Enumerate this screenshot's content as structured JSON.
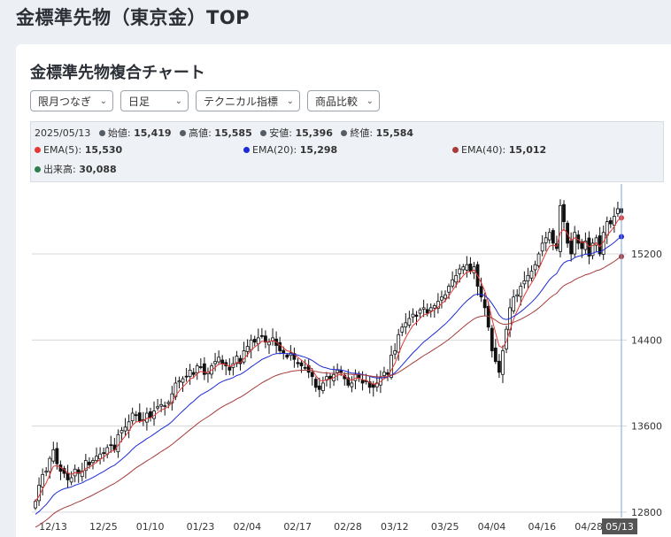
{
  "page": {
    "title": "金標準先物（東京金）TOP"
  },
  "card": {
    "title": "金標準先物複合チャート"
  },
  "toolbar": {
    "dropdowns": [
      "限月つなぎ",
      "日足",
      "テクニカル指標",
      "商品比較"
    ]
  },
  "info": {
    "date": "2025/05/13",
    "open_label": "始値:",
    "open": "15,419",
    "high_label": "高値:",
    "high": "15,585",
    "low_label": "安値:",
    "low": "15,396",
    "close_label": "終値:",
    "close": "15,584",
    "ema5_label": "EMA(5):",
    "ema5": "15,530",
    "ema20_label": "EMA(20):",
    "ema20": "15,298",
    "ema40_label": "EMA(40):",
    "ema40": "15,012",
    "volume_label": "出来高:",
    "volume": "30,088"
  },
  "colors": {
    "ema5": "#e53935",
    "ema20": "#1e2bd6",
    "ema40": "#a83b3b",
    "volume": "#2e7d4f",
    "ohlc": "#555d66",
    "crosshair": "#7aa6d6"
  },
  "chart_data": {
    "type": "candlestick",
    "x_tick_labels": [
      "12/13",
      "12/25",
      "01/10",
      "01/23",
      "02/04",
      "02/17",
      "02/28",
      "03/12",
      "03/25",
      "04/04",
      "04/16",
      "04/28",
      "05/13"
    ],
    "y_tick_labels": [
      "15200",
      "14400",
      "13600",
      "12800"
    ],
    "ylim": [
      12750,
      15850
    ],
    "grid": true,
    "crosshair_label": "05/13",
    "close": [
      12900,
      13050,
      13150,
      13180,
      13300,
      13380,
      13250,
      13180,
      13160,
      13100,
      13120,
      13200,
      13160,
      13180,
      13280,
      13240,
      13280,
      13320,
      13340,
      13350,
      13400,
      13420,
      13380,
      13520,
      13560,
      13590,
      13640,
      13720,
      13700,
      13650,
      13660,
      13720,
      13680,
      13740,
      13780,
      13800,
      13790,
      13820,
      13900,
      14000,
      14020,
      14040,
      14060,
      14120,
      14080,
      14160,
      14150,
      14080,
      14100,
      14160,
      14200,
      14240,
      14180,
      14160,
      14120,
      14180,
      14250,
      14180,
      14300,
      14340,
      14400,
      14380,
      14420,
      14440,
      14380,
      14380,
      14420,
      14350,
      14300,
      14280,
      14240,
      14280,
      14220,
      14180,
      14160,
      14140,
      14100,
      14060,
      13960,
      13940,
      14000,
      14060,
      14040,
      14080,
      14120,
      14100,
      14040,
      13980,
      14000,
      14080,
      14050,
      14000,
      14020,
      13960,
      13960,
      14000,
      14050,
      14100,
      14080,
      14260,
      14300,
      14450,
      14520,
      14560,
      14600,
      14640,
      14620,
      14680,
      14700,
      14650,
      14700,
      14720,
      14760,
      14800,
      14820,
      14900,
      14960,
      15000,
      15060,
      15080,
      15100,
      15040,
      15080,
      14900,
      14800,
      14700,
      14520,
      14300,
      14200,
      14100,
      14300,
      14500,
      14700,
      14800,
      14820,
      14900,
      14950,
      15000,
      15040,
      15100,
      15200,
      15300,
      15350,
      15400,
      15300,
      15250,
      15650,
      15500,
      15300,
      15200,
      15400,
      15300,
      15250,
      15320,
      15180,
      15300,
      15350,
      15200,
      15400,
      15500,
      15480,
      15550,
      15620,
      15584
    ],
    "legend": [
      "始値",
      "高値",
      "安値",
      "終値",
      "EMA(5)",
      "EMA(20)",
      "EMA(40)",
      "出来高"
    ]
  }
}
